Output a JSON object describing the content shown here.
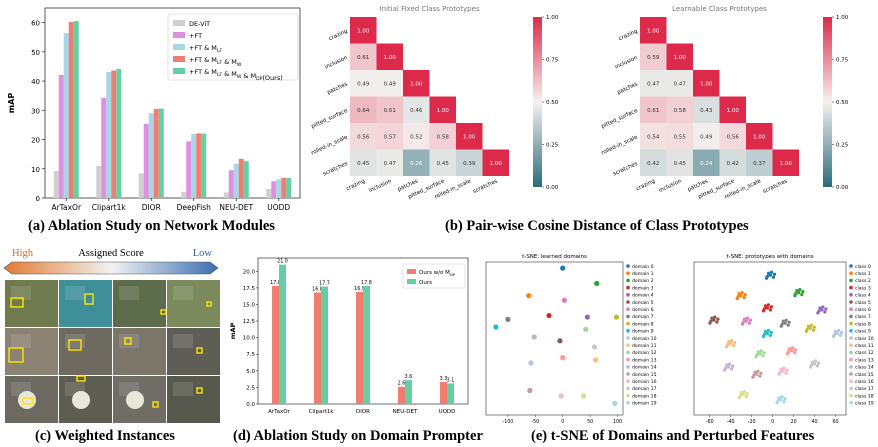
{
  "captions": {
    "a": "(a) Ablation Study on Network Modules",
    "b": "(b) Pair-wise Cosine Distance of Class Prototypes",
    "c": "(c) Weighted Instances",
    "d": "(d) Ablation Study on Domain Prompter",
    "e": "(e) t-SNE of Domains and Perturbed Features"
  },
  "colors": {
    "devit": "#cfcfcf",
    "ft": "#dd8fe0",
    "ft_mlf": "#a8d6e6",
    "ft_mlf_mw": "#f07d6e",
    "ours": "#63d0a3",
    "cmap_low": "#2a6b7a",
    "cmap_mid": "#f5f1ef",
    "cmap_high": "#dd2a4b"
  },
  "chart_data": [
    {
      "id": "a",
      "type": "bar",
      "ylabel": "mAP",
      "ylim": [
        0,
        65
      ],
      "yticks": [
        0,
        10,
        20,
        30,
        40,
        50,
        60
      ],
      "categories": [
        "ArTaxOr",
        "Clipart1k",
        "DIOR",
        "DeepFish",
        "NEU-DET",
        "UODD"
      ],
      "legend": "top-right",
      "series": [
        {
          "name": "DE-ViT",
          "color": "devit",
          "values": [
            9.2,
            11.0,
            8.4,
            2.1,
            1.9,
            3.1
          ]
        },
        {
          "name": "+FT",
          "color": "ft",
          "values": [
            42.1,
            34.2,
            25.3,
            19.4,
            9.5,
            5.7
          ]
        },
        {
          "name": "+FT & M_LF",
          "color": "ft_mlf",
          "values": [
            56.4,
            43.1,
            29.0,
            21.9,
            11.7,
            6.4
          ]
        },
        {
          "name": "+FT & M_LF & M_W",
          "color": "ft_mlf_mw",
          "values": [
            60.2,
            43.6,
            30.5,
            22.1,
            13.4,
            6.9
          ]
        },
        {
          "name": "+FT & M_LF & M_W & M_DP(Ours)",
          "color": "ours",
          "values": [
            60.5,
            44.1,
            30.6,
            22.0,
            12.6,
            6.9
          ]
        }
      ]
    },
    {
      "id": "b1",
      "type": "heatmap",
      "title": "Initial Fixed Class Prototypes",
      "labels": [
        "crazing",
        "inclusion",
        "patches",
        "pitted_surface",
        "rolled-in_scale",
        "scratches"
      ],
      "colorbar_ticks": [
        "0.00",
        "0.25",
        "0.50",
        "0.75",
        "1.00"
      ],
      "matrix": [
        [
          1.0
        ],
        [
          0.61,
          1.0
        ],
        [
          0.49,
          0.49,
          1.0
        ],
        [
          0.64,
          0.61,
          0.46,
          1.0
        ],
        [
          0.56,
          0.57,
          0.52,
          0.58,
          1.0
        ],
        [
          0.45,
          0.47,
          0.26,
          0.45,
          0.39,
          1.0
        ]
      ]
    },
    {
      "id": "b2",
      "type": "heatmap",
      "title": "Learnable Class Prototypes",
      "labels": [
        "crazing",
        "inclusion",
        "patches",
        "pitted_surface",
        "rolled-in_scale",
        "scratches"
      ],
      "colorbar_ticks": [
        "0.00",
        "0.25",
        "0.50",
        "0.75",
        "1.00"
      ],
      "matrix": [
        [
          1.0
        ],
        [
          0.59,
          1.0
        ],
        [
          0.47,
          0.47,
          1.0
        ],
        [
          0.61,
          0.58,
          0.43,
          1.0
        ],
        [
          0.54,
          0.55,
          0.49,
          0.56,
          1.0
        ],
        [
          0.42,
          0.45,
          0.24,
          0.42,
          0.37,
          1.0
        ]
      ]
    },
    {
      "id": "d",
      "type": "bar",
      "ylabel": "mAP",
      "ylim": [
        0,
        22
      ],
      "yticks": [
        "0.0",
        "2.5",
        "5.0",
        "7.5",
        "10.0",
        "12.5",
        "15.0",
        "17.5",
        "20.0"
      ],
      "categories": [
        "ArTaxOr",
        "Clipart1k",
        "DIOR",
        "NEU-DET",
        "UODD"
      ],
      "legend": "top-right",
      "series": [
        {
          "name": "Ours w/o M_DP",
          "color": "ft_mlf_mw",
          "values": [
            17.8,
            16.8,
            16.9,
            2.6,
            3.3
          ],
          "labels": [
            "17.8",
            "16.8",
            "16.9",
            "2.6",
            "3.3"
          ]
        },
        {
          "name": "Ours",
          "color": "ours",
          "values": [
            21.0,
            17.7,
            17.8,
            3.6,
            3.1
          ],
          "labels": [
            "21.0",
            "17.7",
            "17.8",
            "3.6",
            "3.1"
          ]
        }
      ]
    },
    {
      "id": "e1",
      "type": "scatter",
      "title": "t-SNE: learned domains",
      "xlim": [
        -140,
        110
      ],
      "ylim": [
        -90,
        110
      ],
      "xticks": [
        -100,
        -50,
        0,
        50,
        100
      ],
      "legend": "right",
      "series": [
        {
          "name": "domain 0",
          "x": [
            0
          ],
          "y": [
            102
          ]
        },
        {
          "name": "domain 1",
          "x": [
            -62
          ],
          "y": [
            66
          ]
        },
        {
          "name": "domain 2",
          "x": [
            62
          ],
          "y": [
            82
          ]
        },
        {
          "name": "domain 3",
          "x": [
            -25
          ],
          "y": [
            40
          ]
        },
        {
          "name": "domain 4",
          "x": [
            45
          ],
          "y": [
            38
          ]
        },
        {
          "name": "domain 5",
          "x": [
            -5
          ],
          "y": [
            7
          ]
        },
        {
          "name": "domain 6",
          "x": [
            3
          ],
          "y": [
            60
          ]
        },
        {
          "name": "domain 7",
          "x": [
            -100
          ],
          "y": [
            35
          ]
        },
        {
          "name": "domain 8",
          "x": [
            98
          ],
          "y": [
            38
          ]
        },
        {
          "name": "domain 9",
          "x": [
            -122
          ],
          "y": [
            25
          ]
        },
        {
          "name": "domain 10",
          "x": [
            -58
          ],
          "y": [
            -22
          ]
        },
        {
          "name": "domain 11",
          "x": [
            60
          ],
          "y": [
            -18
          ]
        },
        {
          "name": "domain 12",
          "x": [
            42
          ],
          "y": [
            22
          ]
        },
        {
          "name": "domain 13",
          "x": [
            0
          ],
          "y": [
            -15
          ]
        },
        {
          "name": "domain 14",
          "x": [
            -52
          ],
          "y": [
            12
          ]
        },
        {
          "name": "domain 15",
          "x": [
            -60
          ],
          "y": [
            -58
          ]
        },
        {
          "name": "domain 16",
          "x": [
            -3
          ],
          "y": [
            -65
          ]
        },
        {
          "name": "domain 17",
          "x": [
            58
          ],
          "y": [
            -1
          ]
        },
        {
          "name": "domain 18",
          "x": [
            38
          ],
          "y": [
            -65
          ]
        },
        {
          "name": "domain 19",
          "x": [
            95
          ],
          "y": [
            -75
          ]
        }
      ]
    },
    {
      "id": "e2",
      "type": "scatter",
      "title": "t-SNE: prototypes with domains",
      "xlim": [
        -75,
        70
      ],
      "ylim": [
        -75,
        75
      ],
      "xticks": [
        -60,
        -40,
        -20,
        0,
        20,
        40,
        60
      ],
      "legend": "right",
      "series": [
        {
          "name": "class 0",
          "x": [
            -2
          ],
          "y": [
            62
          ]
        },
        {
          "name": "class 1",
          "x": [
            -30
          ],
          "y": [
            42
          ]
        },
        {
          "name": "class 2",
          "x": [
            25
          ],
          "y": [
            45
          ]
        },
        {
          "name": "class 3",
          "x": [
            -5
          ],
          "y": [
            30
          ]
        },
        {
          "name": "class 4",
          "x": [
            47
          ],
          "y": [
            28
          ]
        },
        {
          "name": "class 5",
          "x": [
            -56
          ],
          "y": [
            18
          ]
        },
        {
          "name": "class 6",
          "x": [
            -25
          ],
          "y": [
            17
          ]
        },
        {
          "name": "class 7",
          "x": [
            12
          ],
          "y": [
            15
          ]
        },
        {
          "name": "class 8",
          "x": [
            36
          ],
          "y": [
            10
          ]
        },
        {
          "name": "class 9",
          "x": [
            -5
          ],
          "y": [
            5
          ]
        },
        {
          "name": "class 10",
          "x": [
            62
          ],
          "y": [
            5
          ]
        },
        {
          "name": "class 11",
          "x": [
            -40
          ],
          "y": [
            -5
          ]
        },
        {
          "name": "class 12",
          "x": [
            -12
          ],
          "y": [
            -15
          ]
        },
        {
          "name": "class 13",
          "x": [
            18
          ],
          "y": [
            -12
          ]
        },
        {
          "name": "class 14",
          "x": [
            -42
          ],
          "y": [
            -28
          ]
        },
        {
          "name": "class 15",
          "x": [
            -15
          ],
          "y": [
            -35
          ]
        },
        {
          "name": "class 16",
          "x": [
            10
          ],
          "y": [
            -32
          ]
        },
        {
          "name": "class 17",
          "x": [
            40
          ],
          "y": [
            -25
          ]
        },
        {
          "name": "class 18",
          "x": [
            -28
          ],
          "y": [
            -55
          ]
        },
        {
          "name": "class 19",
          "x": [
            8
          ],
          "y": [
            -60
          ]
        }
      ]
    }
  ],
  "panel_c": {
    "high": "High",
    "assigned": "Assigned Score",
    "low": "Low"
  },
  "legend_e2_text": "class 1"
}
